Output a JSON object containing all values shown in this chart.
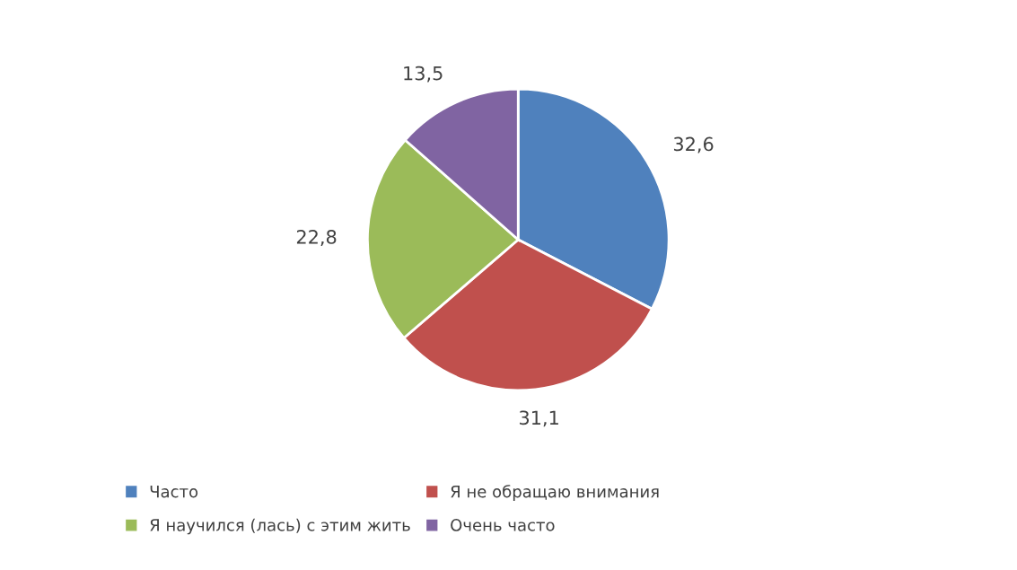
{
  "chart_data": {
    "type": "pie",
    "categories": [
      "Часто",
      "Я не обращаю внимания",
      "Я научился (лась) с этим жить",
      "Очень часто"
    ],
    "values": [
      32.6,
      31.1,
      22.8,
      13.5
    ],
    "colors": [
      "#4f81bd",
      "#c0504d",
      "#9bbb59",
      "#8064a2"
    ],
    "value_labels": [
      "32,6",
      "31,1",
      "22,8",
      "13,5"
    ],
    "legend": "bottom"
  }
}
